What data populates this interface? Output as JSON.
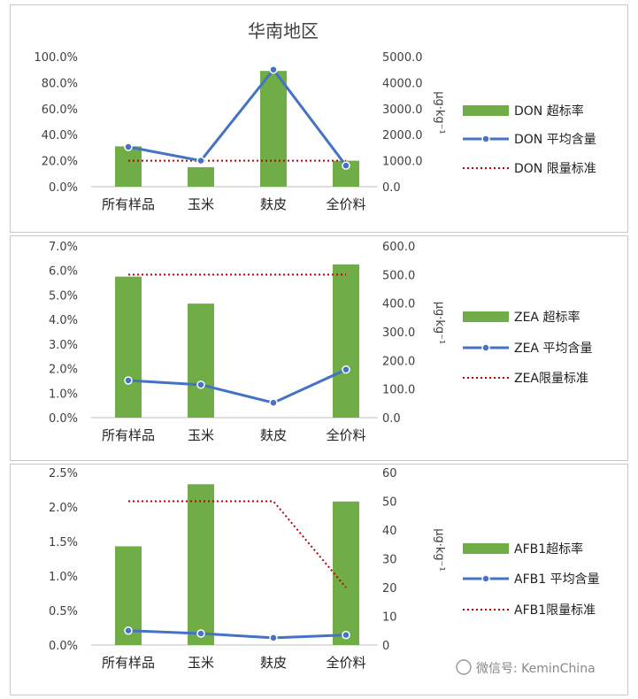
{
  "chart_data": [
    {
      "type": "bar",
      "title": "华南地区",
      "categories": [
        "所有样品",
        "玉米",
        "麸皮",
        "全价料"
      ],
      "bar_series": {
        "name": "DON 超标率",
        "values": [
          0.31,
          0.15,
          0.89,
          0.2
        ],
        "color": "#70AD47"
      },
      "line_series": {
        "name": "DON 平均含量",
        "values": [
          1530,
          1000,
          4500,
          810
        ],
        "color": "#4472C4"
      },
      "limit_series": {
        "name": "DON 限量标准",
        "values": [
          1000,
          1000,
          1000,
          1000
        ],
        "color": "#C00000"
      },
      "y_left": {
        "min": 0,
        "max": 1.0,
        "ticks": [
          "0.0%",
          "20.0%",
          "40.0%",
          "60.0%",
          "80.0%",
          "100.0%"
        ]
      },
      "y_right": {
        "min": 0,
        "max": 5000,
        "ticks": [
          "0.0",
          "1000.0",
          "2000.0",
          "3000.0",
          "4000.0",
          "5000.0"
        ],
        "label": "μg·kg⁻¹"
      }
    },
    {
      "type": "bar",
      "title": "",
      "categories": [
        "所有样品",
        "玉米",
        "麸皮",
        "全价料"
      ],
      "bar_series": {
        "name": "ZEA 超标率",
        "values": [
          0.0575,
          0.0465,
          0.0,
          0.0625
        ],
        "color": "#70AD47"
      },
      "line_series": {
        "name": "ZEA 平均含量",
        "values": [
          130,
          115,
          52,
          168
        ],
        "color": "#4472C4"
      },
      "limit_series": {
        "name": "ZEA限量标准",
        "values": [
          500,
          500,
          500,
          500
        ],
        "color": "#C00000"
      },
      "y_left": {
        "min": 0,
        "max": 0.07,
        "ticks": [
          "0.0%",
          "1.0%",
          "2.0%",
          "3.0%",
          "4.0%",
          "5.0%",
          "6.0%",
          "7.0%"
        ]
      },
      "y_right": {
        "min": 0,
        "max": 600,
        "ticks": [
          "0.0",
          "100.0",
          "200.0",
          "300.0",
          "400.0",
          "500.0",
          "600.0"
        ],
        "label": "μg·kg⁻¹"
      }
    },
    {
      "type": "bar",
      "title": "",
      "categories": [
        "所有样品",
        "玉米",
        "麸皮",
        "全价料"
      ],
      "bar_series": {
        "name": "AFB1超标率",
        "values": [
          0.0143,
          0.0233,
          0.0,
          0.0208
        ],
        "color": "#70AD47"
      },
      "line_series": {
        "name": "AFB1 平均含量",
        "values": [
          5,
          4,
          2.5,
          3.5
        ],
        "color": "#4472C4"
      },
      "limit_series": {
        "name": "AFB1限量标准",
        "values": [
          50,
          50,
          50,
          20
        ],
        "color": "#C00000"
      },
      "y_left": {
        "min": 0,
        "max": 0.025,
        "ticks": [
          "0.0%",
          "0.5%",
          "1.0%",
          "1.5%",
          "2.0%",
          "2.5%"
        ]
      },
      "y_right": {
        "min": 0,
        "max": 60,
        "ticks": [
          "0",
          "10",
          "20",
          "30",
          "40",
          "50",
          "60"
        ],
        "label": "μg·kg⁻¹"
      }
    }
  ],
  "watermark": "微信号: KeminChina"
}
